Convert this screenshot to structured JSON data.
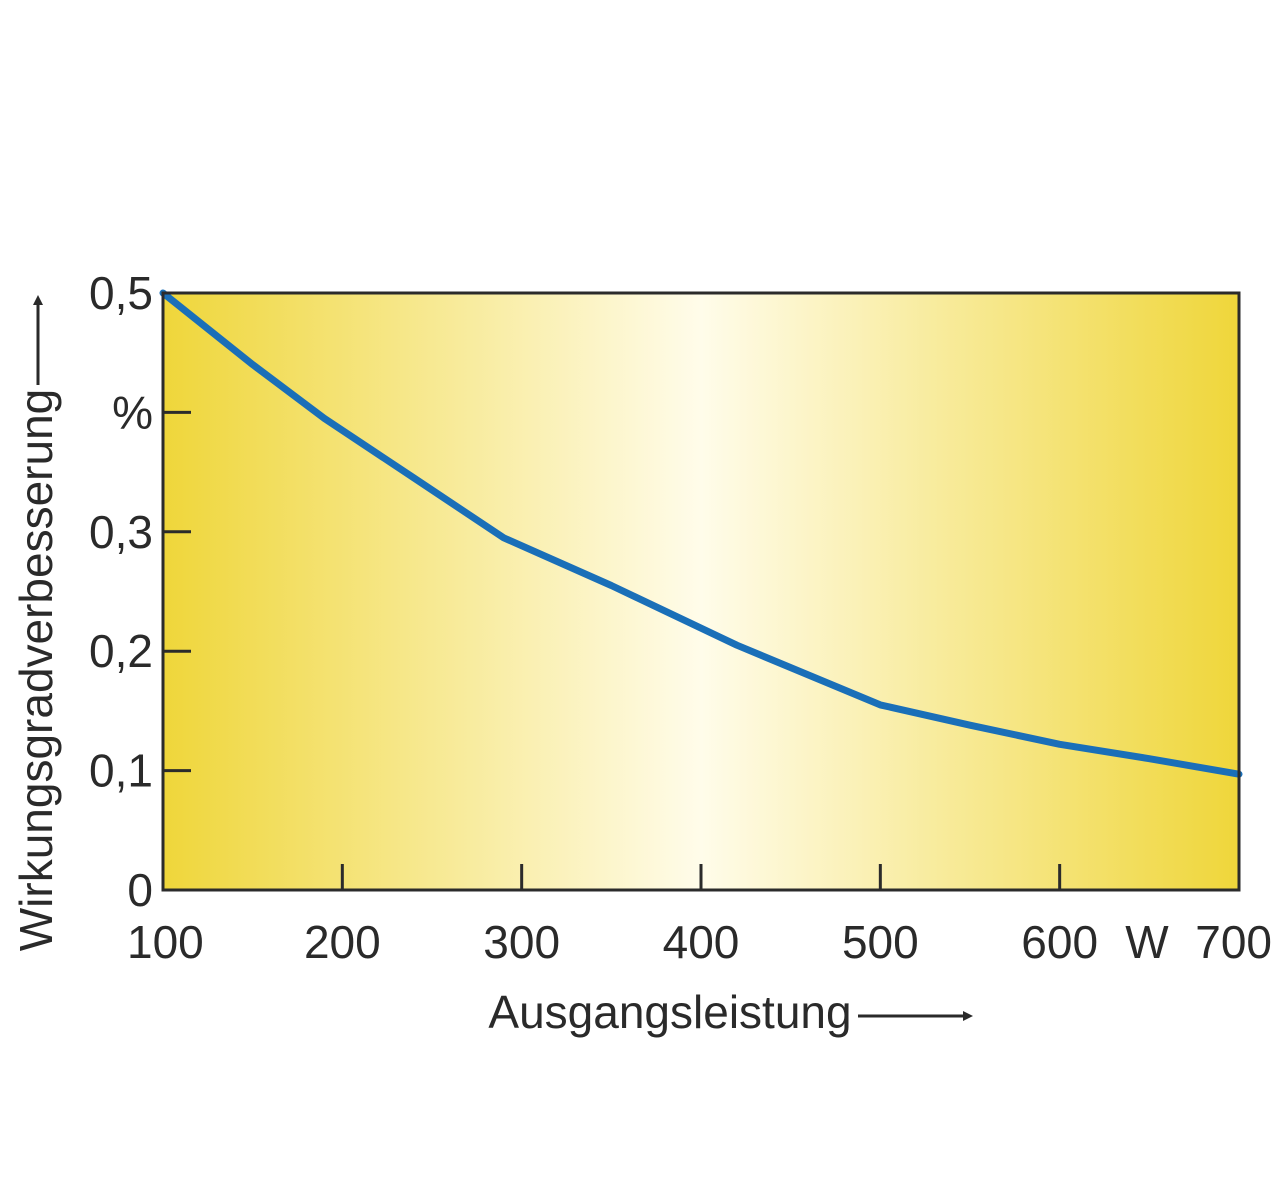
{
  "chart_data": {
    "type": "line",
    "title": "",
    "xlabel": "Ausgangsleistung",
    "ylabel": "Wirkungsgradverbesserung",
    "x_unit": "W",
    "y_unit": "%",
    "xlim": [
      100,
      700
    ],
    "ylim": [
      0,
      0.5
    ],
    "x_ticks": [
      {
        "value": 100,
        "label": "100"
      },
      {
        "value": 200,
        "label": "200"
      },
      {
        "value": 300,
        "label": "300"
      },
      {
        "value": 400,
        "label": "400"
      },
      {
        "value": 500,
        "label": "500"
      },
      {
        "value": 600,
        "label": "600"
      },
      {
        "value": 700,
        "label": "700"
      }
    ],
    "y_ticks": [
      {
        "value": 0,
        "label": "0"
      },
      {
        "value": 0.1,
        "label": "0,1"
      },
      {
        "value": 0.2,
        "label": "0,2"
      },
      {
        "value": 0.3,
        "label": "0,3"
      },
      {
        "value": 0.4,
        "label": "%"
      },
      {
        "value": 0.5,
        "label": "0,5"
      }
    ],
    "grid": false,
    "series": [
      {
        "x": [
          100,
          150,
          190,
          240,
          290,
          350,
          420,
          500,
          550,
          600,
          650,
          700
        ],
        "y": [
          0.5,
          0.44,
          0.395,
          0.345,
          0.295,
          0.255,
          0.205,
          0.155,
          0.138,
          0.122,
          0.11,
          0.097
        ],
        "color": "#1a6fb8"
      }
    ],
    "colors": {
      "line": "#1a6fb8",
      "background_edge": "#efd63a",
      "background_center": "#fffcea",
      "frame": "#2b2b2b",
      "text": "#2a2a2a"
    }
  }
}
